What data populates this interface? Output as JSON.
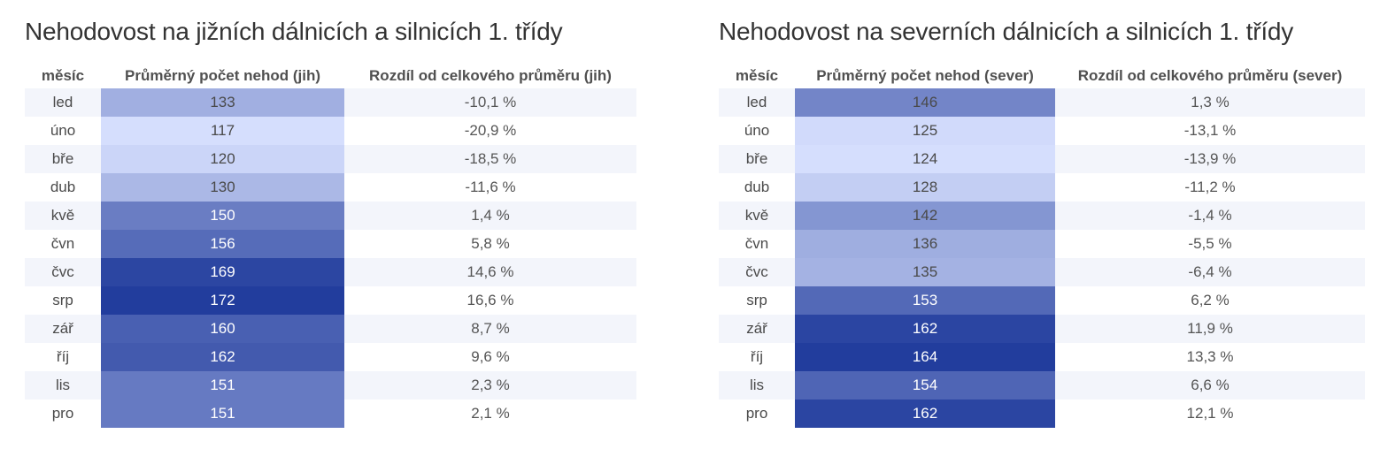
{
  "chart_data": [
    {
      "type": "table",
      "title": "Nehodovost na jižních dálnicích a silnicích 1. třídy",
      "columns": [
        "měsíc",
        "Průměrný počet nehod (jih)",
        "Rozdíl od celkového průměru (jih)"
      ],
      "rows": [
        {
          "month": "led",
          "value": 133,
          "diff": "-10,1 %"
        },
        {
          "month": "úno",
          "value": 117,
          "diff": "-20,9 %"
        },
        {
          "month": "bře",
          "value": 120,
          "diff": "-18,5 %"
        },
        {
          "month": "dub",
          "value": 130,
          "diff": "-11,6 %"
        },
        {
          "month": "kvě",
          "value": 150,
          "diff": "1,4 %"
        },
        {
          "month": "čvn",
          "value": 156,
          "diff": "5,8 %"
        },
        {
          "month": "čvc",
          "value": 169,
          "diff": "14,6 %"
        },
        {
          "month": "srp",
          "value": 172,
          "diff": "16,6 %"
        },
        {
          "month": "zář",
          "value": 160,
          "diff": "8,7 %"
        },
        {
          "month": "říj",
          "value": 162,
          "diff": "9,6 %"
        },
        {
          "month": "lis",
          "value": 151,
          "diff": "2,3 %"
        },
        {
          "month": "pro",
          "value": 151,
          "diff": "2,1 %"
        }
      ]
    },
    {
      "type": "table",
      "title": "Nehodovost na severních dálnicích a silnicích 1. třídy",
      "columns": [
        "měsíc",
        "Průměrný počet nehod (sever)",
        "Rozdíl od celkového průměru (sever)"
      ],
      "rows": [
        {
          "month": "led",
          "value": 146,
          "diff": "1,3 %"
        },
        {
          "month": "úno",
          "value": 125,
          "diff": "-13,1 %"
        },
        {
          "month": "bře",
          "value": 124,
          "diff": "-13,9 %"
        },
        {
          "month": "dub",
          "value": 128,
          "diff": "-11,2 %"
        },
        {
          "month": "kvě",
          "value": 142,
          "diff": "-1,4 %"
        },
        {
          "month": "čvn",
          "value": 136,
          "diff": "-5,5 %"
        },
        {
          "month": "čvc",
          "value": 135,
          "diff": "-6,4 %"
        },
        {
          "month": "srp",
          "value": 153,
          "diff": "6,2 %"
        },
        {
          "month": "zář",
          "value": 162,
          "diff": "11,9 %"
        },
        {
          "month": "říj",
          "value": 164,
          "diff": "13,3 %"
        },
        {
          "month": "lis",
          "value": 154,
          "diff": "6,6 %"
        },
        {
          "month": "pro",
          "value": 162,
          "diff": "12,1 %"
        }
      ]
    }
  ],
  "colors": {
    "heat_low": "#d5defd",
    "heat_high": "#223d9d",
    "alt_row": "#f3f5fb"
  }
}
